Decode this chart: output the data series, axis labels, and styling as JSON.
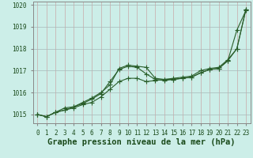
{
  "xlabel": "Graphe pression niveau de la mer (hPa)",
  "background_color": "#cceee8",
  "grid_color": "#b0c8c8",
  "line_color": "#2a5e2a",
  "x_hours": [
    0,
    1,
    2,
    3,
    4,
    5,
    6,
    7,
    8,
    9,
    10,
    11,
    12,
    13,
    14,
    15,
    16,
    17,
    18,
    19,
    20,
    21,
    22,
    23
  ],
  "series1": [
    1015.0,
    1014.9,
    1015.1,
    1015.2,
    1015.3,
    1015.45,
    1015.55,
    1015.8,
    1016.15,
    1016.5,
    1016.65,
    1016.65,
    1016.5,
    1016.55,
    1016.6,
    1016.6,
    1016.65,
    1016.7,
    1016.9,
    1017.05,
    1017.1,
    1017.45,
    1018.0,
    1019.8
  ],
  "series2": [
    1015.0,
    1014.9,
    1015.1,
    1015.2,
    1015.35,
    1015.5,
    1015.7,
    1015.95,
    1016.5,
    1017.05,
    1017.2,
    1017.15,
    1016.85,
    1016.6,
    1016.55,
    1016.6,
    1016.65,
    1016.7,
    1016.9,
    1017.05,
    1017.1,
    1017.45,
    1018.85,
    1019.75
  ],
  "series3": [
    1015.0,
    1014.9,
    1015.1,
    1015.3,
    1015.35,
    1015.55,
    1015.75,
    1016.0,
    1016.35,
    1017.1,
    1017.25,
    1017.2,
    1017.15,
    1016.65,
    1016.6,
    1016.65,
    1016.7,
    1016.75,
    1017.0,
    1017.1,
    1017.15,
    1017.5,
    1018.0,
    1019.8
  ],
  "ylim_min": 1014.6,
  "ylim_max": 1020.15,
  "yticks": [
    1015,
    1016,
    1017,
    1018,
    1019,
    1020
  ],
  "xticks": [
    0,
    1,
    2,
    3,
    4,
    5,
    6,
    7,
    8,
    9,
    10,
    11,
    12,
    13,
    14,
    15,
    16,
    17,
    18,
    19,
    20,
    21,
    22,
    23
  ],
  "marker": "+",
  "marker_size": 4.0,
  "line_width": 0.8,
  "xlabel_fontsize": 7.5,
  "tick_fontsize": 5.5,
  "label_color": "#1a4a1a"
}
